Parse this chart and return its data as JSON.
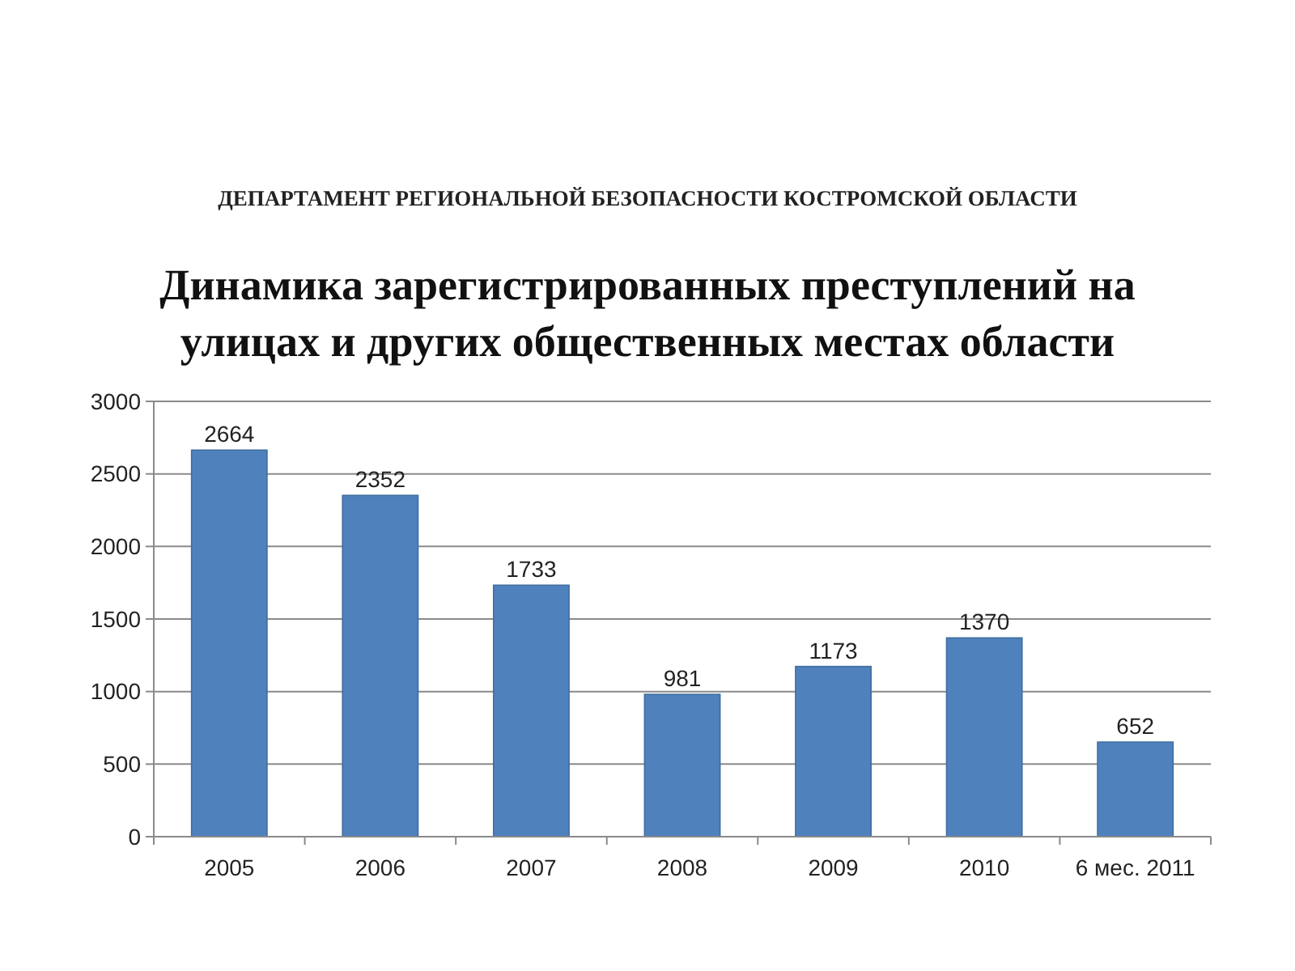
{
  "chart_data": {
    "type": "bar",
    "subtitle": "ДЕПАРТАМЕНТ РЕГИОНАЛЬНОЙ БЕЗОПАСНОСТИ КОСТРОМСКОЙ ОБЛАСТИ",
    "title": "Динамика зарегистрированных преступлений на улицах и других общественных местах области",
    "categories": [
      "2005",
      "2006",
      "2007",
      "2008",
      "2009",
      "2010",
      "6 мес. 2011"
    ],
    "values": [
      2664,
      2352,
      1733,
      981,
      1173,
      1370,
      652
    ],
    "color": "#4f81bd",
    "ylim": [
      0,
      3000
    ],
    "yticks": [
      0,
      500,
      1000,
      1500,
      2000,
      2500,
      3000
    ],
    "grid": "y",
    "data_labels": true
  }
}
